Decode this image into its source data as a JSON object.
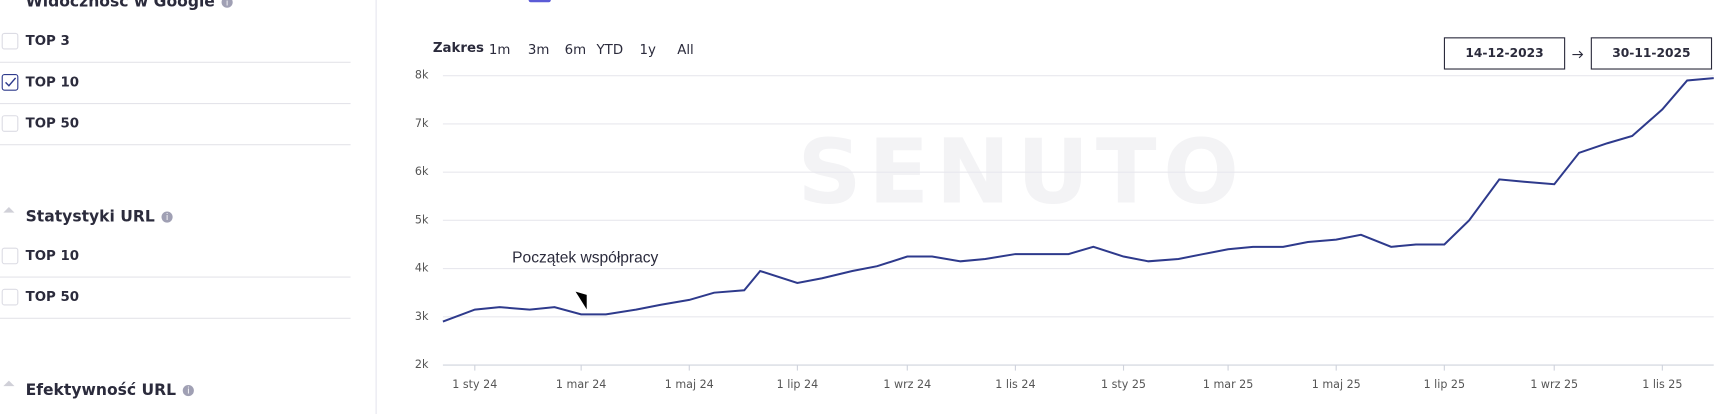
{
  "sidebar": {
    "sections": [
      {
        "title": "Widoczność w Google",
        "items": [
          {
            "label": "TOP 3",
            "checked": false
          },
          {
            "label": "TOP 10",
            "checked": true
          },
          {
            "label": "TOP 50",
            "checked": false
          }
        ]
      },
      {
        "title": "Statystyki URL",
        "items": [
          {
            "label": "TOP 10",
            "checked": false
          },
          {
            "label": "TOP 50",
            "checked": false
          }
        ]
      },
      {
        "title": "Efektywność URL",
        "items": []
      }
    ]
  },
  "range": {
    "label": "Zakres",
    "options": [
      "1m",
      "3m",
      "6m",
      "YTD",
      "1y",
      "All"
    ],
    "start": "14-12-2023",
    "end": "30-11-2025"
  },
  "chart_data": {
    "type": "line",
    "watermark": "SENUTO",
    "annotation": {
      "text": "Początek współpracy",
      "x": "2024-03-01"
    },
    "x": [
      "2023-12-14",
      "2024-01-01",
      "2024-01-15",
      "2024-02-01",
      "2024-02-15",
      "2024-03-01",
      "2024-03-15",
      "2024-04-01",
      "2024-04-15",
      "2024-05-01",
      "2024-05-15",
      "2024-06-01",
      "2024-06-10",
      "2024-07-01",
      "2024-07-15",
      "2024-08-01",
      "2024-08-15",
      "2024-09-01",
      "2024-09-15",
      "2024-10-01",
      "2024-10-15",
      "2024-11-01",
      "2024-11-15",
      "2024-12-01",
      "2024-12-15",
      "2025-01-01",
      "2025-01-15",
      "2025-02-01",
      "2025-02-15",
      "2025-03-01",
      "2025-03-15",
      "2025-04-01",
      "2025-04-15",
      "2025-05-01",
      "2025-05-15",
      "2025-06-01",
      "2025-06-15",
      "2025-07-01",
      "2025-07-15",
      "2025-08-01",
      "2025-08-15",
      "2025-09-01",
      "2025-09-15",
      "2025-10-01",
      "2025-10-15",
      "2025-11-01",
      "2025-11-15",
      "2025-11-30"
    ],
    "values": [
      2900,
      3150,
      3200,
      3150,
      3200,
      3050,
      3050,
      3150,
      3250,
      3350,
      3500,
      3550,
      3950,
      3700,
      3800,
      3950,
      4050,
      4250,
      4250,
      4150,
      4200,
      4300,
      4300,
      4300,
      4450,
      4250,
      4150,
      4200,
      4300,
      4400,
      4450,
      4450,
      4550,
      4600,
      4700,
      4450,
      4500,
      4500,
      5000,
      5850,
      5800,
      5750,
      6400,
      6600,
      6750,
      7300,
      7900,
      7950
    ],
    "color": "#2e3a8c",
    "xlim": [
      "2023-12-14",
      "2025-11-30"
    ],
    "xticks": [
      {
        "value": "2024-01-01",
        "label": "1 sty 24"
      },
      {
        "value": "2024-03-01",
        "label": "1 mar 24"
      },
      {
        "value": "2024-05-01",
        "label": "1 maj 24"
      },
      {
        "value": "2024-07-01",
        "label": "1 lip 24"
      },
      {
        "value": "2024-09-01",
        "label": "1 wrz 24"
      },
      {
        "value": "2024-11-01",
        "label": "1 lis 24"
      },
      {
        "value": "2025-01-01",
        "label": "1 sty 25"
      },
      {
        "value": "2025-03-01",
        "label": "1 mar 25"
      },
      {
        "value": "2025-05-01",
        "label": "1 maj 25"
      },
      {
        "value": "2025-07-01",
        "label": "1 lip 25"
      },
      {
        "value": "2025-09-01",
        "label": "1 wrz 25"
      },
      {
        "value": "2025-11-01",
        "label": "1 lis 25"
      }
    ],
    "ylim": [
      2000,
      8000
    ],
    "yticks": [
      {
        "value": 2000,
        "label": "2k"
      },
      {
        "value": 3000,
        "label": "3k"
      },
      {
        "value": 4000,
        "label": "4k"
      },
      {
        "value": 5000,
        "label": "5k"
      },
      {
        "value": 6000,
        "label": "6k"
      },
      {
        "value": 7000,
        "label": "7k"
      },
      {
        "value": 8000,
        "label": "8k"
      }
    ],
    "grid": true
  }
}
